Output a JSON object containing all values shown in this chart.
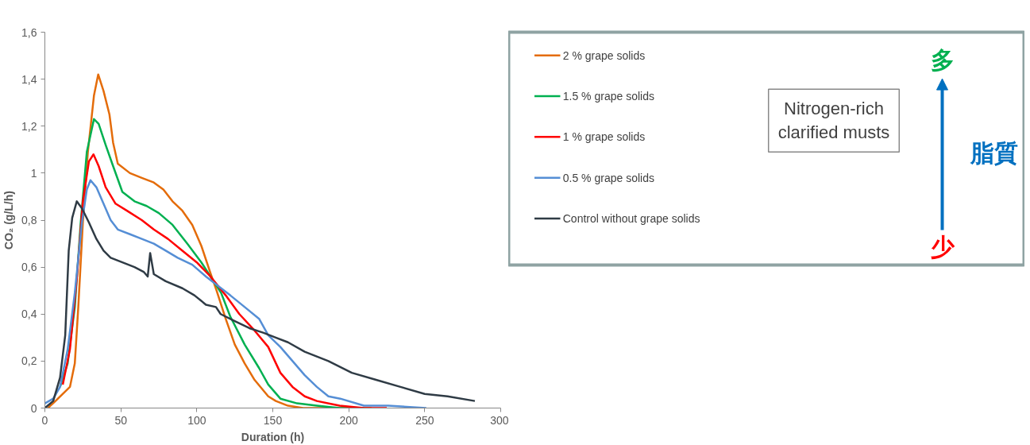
{
  "chart_data": {
    "type": "line",
    "xlabel": "Duration (h)",
    "ylabel": "CO₂ (g/L/h)",
    "xlim": [
      0,
      300
    ],
    "xticks": [
      0,
      50,
      100,
      150,
      200,
      250,
      300
    ],
    "ylim": [
      0,
      1.6
    ],
    "yticks": [
      0,
      {
        "value": 0.2,
        "label": "0,2"
      },
      {
        "value": 0.4,
        "label": "0,4"
      },
      {
        "value": 0.6,
        "label": "0,6"
      },
      {
        "value": 0.8,
        "label": "0,8"
      },
      1,
      {
        "value": 1.2,
        "label": "1,2"
      },
      {
        "value": 1.4,
        "label": "1,4"
      },
      {
        "value": 1.6,
        "label": "1,6"
      }
    ],
    "grid": false,
    "legend": "right",
    "marker": "none",
    "line_style": "solid",
    "series": [
      {
        "name": "2 % grape solids",
        "color": "#e46c0a",
        "x": [
          2,
          7,
          16.5,
          19.7,
          22,
          25,
          28.3,
          32.3,
          35.1,
          38.6,
          42.5,
          44.9,
          48,
          56,
          63.8,
          71.7,
          78,
          84,
          90.5,
          97,
          103,
          108.7,
          113,
          119,
          125,
          131.5,
          138,
          147,
          152,
          160,
          170,
          190,
          215
        ],
        "values": [
          0,
          0.03,
          0.09,
          0.19,
          0.43,
          0.79,
          1.09,
          1.33,
          1.42,
          1.35,
          1.25,
          1.13,
          1.04,
          1.0,
          0.98,
          0.96,
          0.93,
          0.88,
          0.84,
          0.78,
          0.69,
          0.58,
          0.5,
          0.38,
          0.27,
          0.19,
          0.12,
          0.05,
          0.03,
          0.01,
          0.0,
          0.0,
          0.0
        ]
      },
      {
        "name": "1.5 % grape solids",
        "color": "#00b050",
        "x": [
          10,
          15,
          19.7,
          23.6,
          27.6,
          32.3,
          35.4,
          40,
          44.9,
          51,
          59,
          67,
          75,
          84,
          93.7,
          103,
          109,
          116,
          122,
          131.5,
          141,
          147,
          155,
          166,
          179,
          194,
          210
        ],
        "values": [
          0.09,
          0.19,
          0.43,
          0.79,
          1.09,
          1.23,
          1.21,
          1.12,
          1.03,
          0.92,
          0.88,
          0.86,
          0.83,
          0.78,
          0.7,
          0.62,
          0.56,
          0.49,
          0.39,
          0.27,
          0.17,
          0.1,
          0.04,
          0.02,
          0.01,
          0.0,
          0.0
        ]
      },
      {
        "name": "1 % grape solids",
        "color": "#ff0000",
        "x": [
          11.8,
          16.5,
          21,
          25,
          29,
          32,
          35.4,
          40,
          46.5,
          54,
          63.8,
          71.7,
          81,
          90.5,
          100,
          109,
          119,
          128,
          138,
          147,
          155,
          163,
          171,
          179,
          194,
          210,
          225
        ],
        "values": [
          0.1,
          0.25,
          0.55,
          0.88,
          1.05,
          1.08,
          1.03,
          0.94,
          0.87,
          0.84,
          0.8,
          0.76,
          0.72,
          0.67,
          0.62,
          0.56,
          0.48,
          0.4,
          0.33,
          0.26,
          0.15,
          0.09,
          0.05,
          0.03,
          0.01,
          0.0,
          0.0
        ]
      },
      {
        "name": "0.5 % grape solids",
        "color": "#558ed5",
        "x": [
          0,
          5.5,
          10,
          15,
          19.7,
          24.4,
          27.6,
          30,
          33.9,
          38.6,
          43.3,
          48,
          56,
          63.8,
          71.7,
          79.5,
          87.4,
          97,
          106,
          116,
          122,
          131.5,
          141,
          147,
          155,
          163,
          171,
          179,
          186.6,
          194.4,
          210,
          226,
          251
        ],
        "values": [
          0.02,
          0.04,
          0.09,
          0.25,
          0.49,
          0.79,
          0.93,
          0.97,
          0.94,
          0.87,
          0.8,
          0.76,
          0.74,
          0.72,
          0.7,
          0.67,
          0.64,
          0.61,
          0.56,
          0.51,
          0.48,
          0.43,
          0.38,
          0.31,
          0.26,
          0.2,
          0.14,
          0.09,
          0.05,
          0.04,
          0.01,
          0.01,
          0.0
        ]
      },
      {
        "name": "Control without grape solids",
        "color": "#2f3b45",
        "x": [
          0,
          5.5,
          10,
          13.4,
          15.7,
          18,
          21,
          24.4,
          29,
          33.9,
          38.6,
          43.3,
          51,
          59,
          65,
          67.7,
          69.3,
          71.7,
          79.5,
          90.5,
          98.4,
          106,
          112.6,
          115.7,
          125,
          134.6,
          144,
          152,
          160,
          171,
          186.6,
          202,
          218,
          234,
          250,
          265,
          283
        ],
        "values": [
          0,
          0.03,
          0.13,
          0.31,
          0.67,
          0.81,
          0.88,
          0.85,
          0.79,
          0.72,
          0.67,
          0.64,
          0.62,
          0.6,
          0.58,
          0.56,
          0.66,
          0.57,
          0.54,
          0.51,
          0.48,
          0.44,
          0.43,
          0.4,
          0.37,
          0.34,
          0.32,
          0.3,
          0.28,
          0.24,
          0.2,
          0.15,
          0.12,
          0.09,
          0.06,
          0.05,
          0.03
        ]
      }
    ],
    "annotations": [
      "Nitrogen-rich clarified musts",
      "多",
      "脂質",
      "少"
    ]
  }
}
